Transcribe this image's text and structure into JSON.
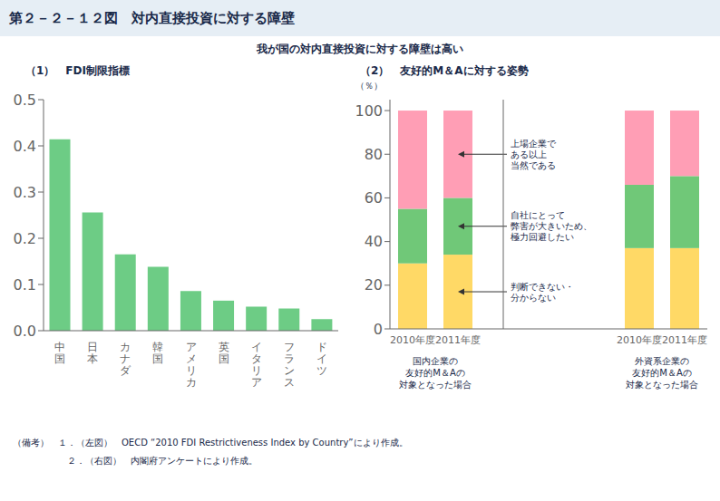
{
  "title": "第２－２－１２図　対内直接投資に対する障壁",
  "subtitle": "我が国の対内直接投資に対する障壁は高い",
  "footnotes": [
    "（備考）　１．（左図）　OECD “2010 FDI Restrictiveness Index by Country”により作成。",
    "　　　　　　２．（右図）　内閣府アンケートにより作成。"
  ],
  "chart_data": [
    {
      "type": "bar",
      "title": "（1）　FDI制限指標",
      "categories": [
        "中国",
        "日本",
        "カナダ",
        "韓国",
        "アメリカ",
        "英国",
        "イタリア",
        "フランス",
        "ドイツ"
      ],
      "values": [
        0.414,
        0.256,
        0.165,
        0.138,
        0.086,
        0.065,
        0.052,
        0.048,
        0.025
      ],
      "color": "#6dcc85",
      "ylim": [
        0,
        0.5
      ],
      "yticks": [
        {
          "value": 0,
          "label": "0.0"
        },
        0.1,
        0.2,
        0.3,
        0.4,
        0.5
      ],
      "grid": false
    },
    {
      "type": "bar",
      "stacked": true,
      "title": "（2）　友好的M＆Aに対する姿勢",
      "ylabel": "（％）",
      "categories": [
        "2010年度",
        "2011年度",
        "2010年度",
        "2011年度"
      ],
      "group_labels": [
        "国内企業の\n友好的M＆Aの\n対象となった場合",
        "外資系企業の\n友好的M＆Aの\n対象となった場合"
      ],
      "series": [
        {
          "name": "判断できない・\n分からない",
          "color": "#FFD966",
          "values": [
            30,
            34,
            37,
            37
          ]
        },
        {
          "name": "自社にとって\n弊害が大きいため、\n極力回避したい",
          "color": "#70C878",
          "values": [
            25,
            26,
            29,
            33
          ]
        },
        {
          "name": "上場企業で\nある以上\n当然である",
          "color": "#FF9EB5",
          "values": [
            45,
            40,
            34,
            30
          ]
        }
      ],
      "ylim": [
        0,
        105
      ],
      "yticks": [
        0,
        20,
        40,
        60,
        80,
        100
      ],
      "grid": false
    }
  ]
}
